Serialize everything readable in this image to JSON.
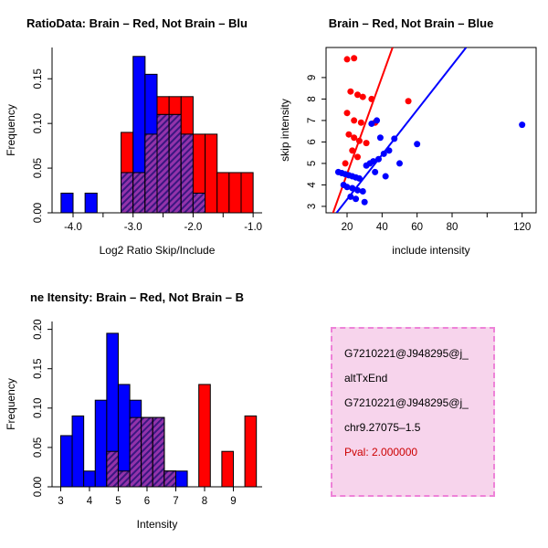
{
  "page": {
    "background": "#ffffff"
  },
  "palette": {
    "red": "#ff0000",
    "blue": "#0000ff",
    "overlap": "#9333aa",
    "overlap_hatch": "#3a1680",
    "axis": "#000000"
  },
  "chart_data": [
    {
      "type": "bar",
      "subtype": "overlaid-histogram",
      "title": "RatioData: Brain – Red, Not Brain – Blu",
      "xlabel": "Log2 Ratio Skip/Include",
      "ylabel": "Frequency",
      "xlim": [
        -4.35,
        -0.85
      ],
      "ylim": [
        0,
        0.185
      ],
      "grid": false,
      "xticks": {
        "values": [
          -4.0,
          -3.5,
          -3.0,
          -2.5,
          -2.0,
          -1.5,
          -1.0
        ],
        "labels": [
          "-4.0",
          "",
          "-3.0",
          "",
          "-2.0",
          "",
          "-1.0"
        ]
      },
      "yticks": {
        "values": [
          0,
          0.05,
          0.1,
          0.15
        ],
        "labels": [
          "0.00",
          "0.05",
          "0.10",
          "0.15"
        ]
      },
      "bin_width": 0.2,
      "bin_starts": [
        -4.2,
        -4.0,
        -3.8,
        -3.6,
        -3.4,
        -3.2,
        -3.0,
        -2.8,
        -2.6,
        -2.4,
        -2.2,
        -2.0,
        -1.8,
        -1.6,
        -1.4,
        -1.2
      ],
      "series": [
        {
          "name": "Brain",
          "color": "red",
          "values": [
            0,
            0,
            0,
            0,
            0,
            0.09,
            0.045,
            0.088,
            0.13,
            0.13,
            0.13,
            0.088,
            0.088,
            0.045,
            0.045,
            0.045
          ]
        },
        {
          "name": "Not Brain",
          "color": "blue",
          "values": [
            0.022,
            0,
            0.022,
            0,
            0,
            0.045,
            0.175,
            0.155,
            0.11,
            0.11,
            0.088,
            0.022,
            0,
            0,
            0,
            0
          ]
        }
      ]
    },
    {
      "type": "scatter",
      "title": "Brain – Red, Not Brain – Blue",
      "xlabel": "include intensity",
      "ylabel": "skip intensity",
      "xlim": [
        8,
        128
      ],
      "ylim": [
        2.7,
        10.4
      ],
      "grid": false,
      "xticks": {
        "values": [
          20,
          40,
          60,
          80,
          100,
          120
        ],
        "labels": [
          "20",
          "40",
          "60",
          "80",
          "",
          "120"
        ]
      },
      "yticks": {
        "values": [
          3,
          4,
          5,
          6,
          7,
          8,
          9
        ],
        "labels": [
          "3",
          "4",
          "5",
          "6",
          "7",
          "8",
          "9"
        ]
      },
      "series": [
        {
          "name": "Brain",
          "color": "red",
          "points": [
            [
              20,
              9.85
            ],
            [
              24,
              9.9
            ],
            [
              22,
              8.35
            ],
            [
              26,
              8.2
            ],
            [
              29,
              8.1
            ],
            [
              34,
              8.0
            ],
            [
              20,
              7.35
            ],
            [
              24,
              7.0
            ],
            [
              28,
              6.9
            ],
            [
              36,
              6.9
            ],
            [
              21,
              6.35
            ],
            [
              24,
              6.2
            ],
            [
              27,
              6.05
            ],
            [
              31,
              5.95
            ],
            [
              23,
              5.6
            ],
            [
              26,
              5.3
            ],
            [
              19,
              5.0
            ],
            [
              55,
              7.9
            ]
          ],
          "fit_line": [
            [
              12,
              2.7
            ],
            [
              46,
              10.4
            ]
          ]
        },
        {
          "name": "Not Brain",
          "color": "blue",
          "points": [
            [
              15,
              4.6
            ],
            [
              17,
              4.55
            ],
            [
              19,
              4.5
            ],
            [
              21,
              4.45
            ],
            [
              23,
              4.4
            ],
            [
              25,
              4.35
            ],
            [
              27,
              4.3
            ],
            [
              31,
              4.9
            ],
            [
              36,
              4.6
            ],
            [
              42,
              4.4
            ],
            [
              18,
              4.0
            ],
            [
              20,
              3.9
            ],
            [
              23,
              3.85
            ],
            [
              26,
              3.75
            ],
            [
              29,
              3.7
            ],
            [
              22,
              3.45
            ],
            [
              25,
              3.35
            ],
            [
              30,
              3.2
            ],
            [
              33,
              5.0
            ],
            [
              35,
              5.1
            ],
            [
              38,
              5.2
            ],
            [
              41,
              5.45
            ],
            [
              44,
              5.6
            ],
            [
              47,
              6.15
            ],
            [
              39,
              6.2
            ],
            [
              34,
              6.85
            ],
            [
              37,
              7.0
            ],
            [
              50,
              5.0
            ],
            [
              60,
              5.9
            ],
            [
              120,
              6.8
            ]
          ],
          "fit_line": [
            [
              14,
              2.7
            ],
            [
              88,
              10.4
            ]
          ]
        }
      ]
    },
    {
      "type": "bar",
      "subtype": "overlaid-histogram",
      "title": "ne Itensity: Brain – Red, Not Brain – B",
      "xlabel": "Intensity",
      "ylabel": "Frequency",
      "xlim": [
        2.7,
        10.0
      ],
      "ylim": [
        0,
        0.21
      ],
      "grid": false,
      "xticks": {
        "values": [
          3,
          4,
          5,
          6,
          7,
          8,
          9
        ],
        "labels": [
          "3",
          "4",
          "5",
          "6",
          "7",
          "8",
          "9"
        ]
      },
      "yticks": {
        "values": [
          0,
          0.05,
          0.1,
          0.15,
          0.2
        ],
        "labels": [
          "0.00",
          "0.05",
          "0.10",
          "0.15",
          "0.20"
        ]
      },
      "bin_width": 0.4,
      "bin_starts": [
        3.0,
        3.4,
        3.8,
        4.2,
        4.6,
        5.0,
        5.4,
        5.8,
        6.2,
        6.6,
        7.0,
        7.4,
        7.8,
        8.2,
        8.6,
        9.0,
        9.4
      ],
      "series": [
        {
          "name": "Brain",
          "color": "red",
          "values": [
            0,
            0,
            0,
            0,
            0.045,
            0.02,
            0.088,
            0.088,
            0.088,
            0.02,
            0,
            0,
            0.13,
            0,
            0.045,
            0,
            0.09
          ]
        },
        {
          "name": "Not Brain",
          "color": "blue",
          "values": [
            0.065,
            0.09,
            0.02,
            0.11,
            0.195,
            0.13,
            0.11,
            0.088,
            0.088,
            0.02,
            0.02,
            0,
            0,
            0,
            0,
            0,
            0
          ]
        }
      ]
    }
  ],
  "info_panel": {
    "background": "#f7d4ec",
    "border_color": "#ee82d8",
    "lines": [
      {
        "text": "G7210221@J948295@j_",
        "color": "#000000"
      },
      {
        "text": "altTxEnd",
        "color": "#000000"
      },
      {
        "text": "G7210221@J948295@j_",
        "color": "#000000"
      },
      {
        "text": "chr9.27075–1.5",
        "color": "#000000"
      },
      {
        "text": "Pval: 2.000000",
        "color": "#cc0000"
      }
    ]
  }
}
